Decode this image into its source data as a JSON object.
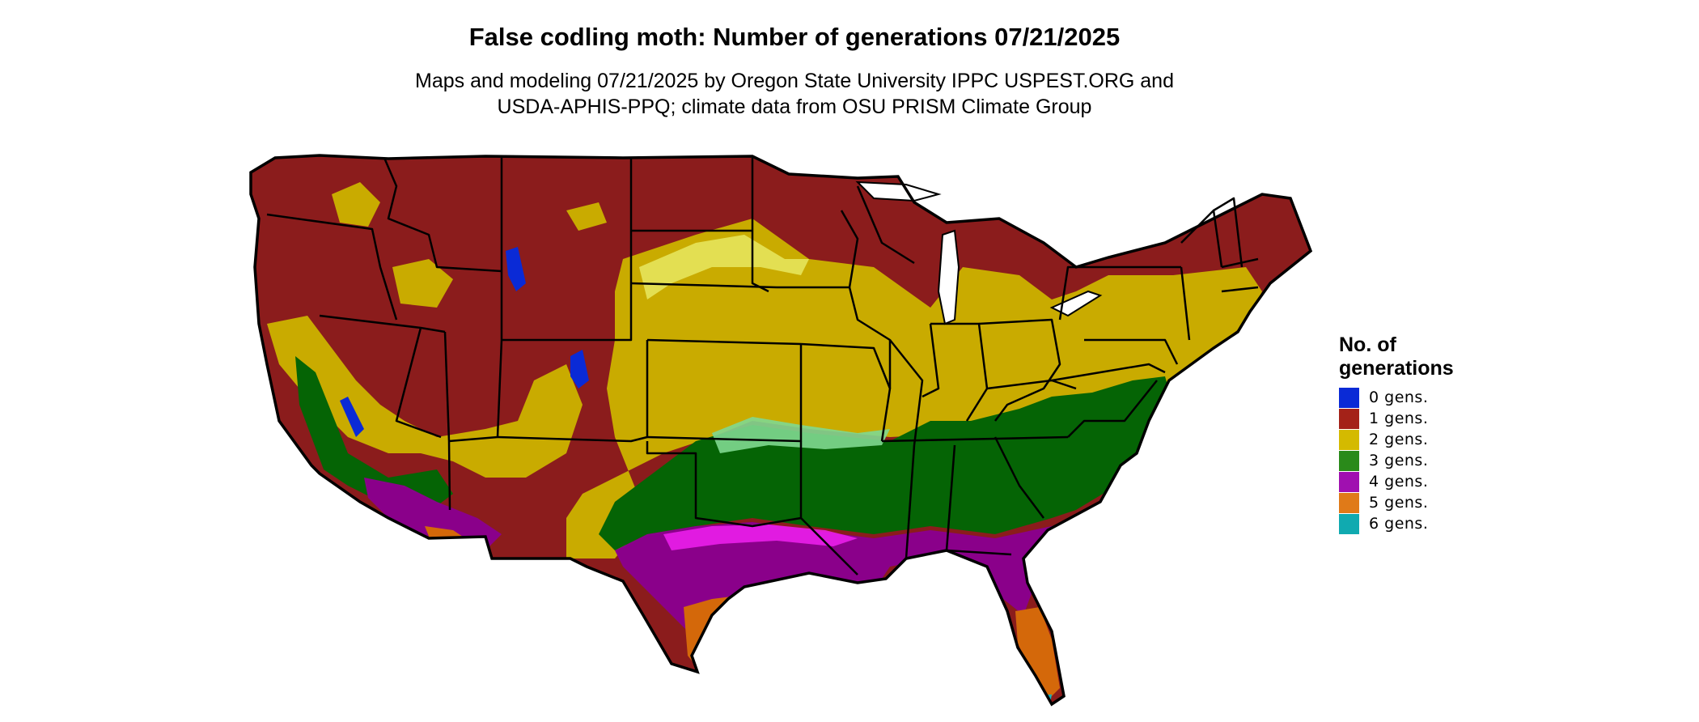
{
  "title": "False codling moth: Number of generations 07/21/2025",
  "subtitle_line1": "Maps and modeling 07/21/2025 by Oregon State University IPPC USPEST.ORG and",
  "subtitle_line2": "USDA-APHIS-PPQ; climate data from OSU PRISM Climate Group",
  "legend": {
    "title_line1": "No. of",
    "title_line2": "generations",
    "items": [
      {
        "label": "0 gens.",
        "color": "#0a2ad6"
      },
      {
        "label": "1 gens.",
        "color": "#a42218"
      },
      {
        "label": "2 gens.",
        "color": "#d4ba00"
      },
      {
        "label": "3 gens.",
        "color": "#2a8a1a"
      },
      {
        "label": "4 gens.",
        "color": "#a010b0"
      },
      {
        "label": "5 gens.",
        "color": "#e07a18"
      },
      {
        "label": "6 gens.",
        "color": "#10aab0"
      }
    ]
  },
  "map_colors": {
    "gen1_fill": "#8b1c1c",
    "gen2_fill": "#c9ab00",
    "gen2_light": "#e8e860",
    "gen3_fill": "#056405",
    "gen3_light": "#80d890",
    "gen4_fill": "#8a008a",
    "gen4_light": "#f020f0",
    "gen5_fill": "#d4680a",
    "gen6_fill": "#12b0b8",
    "gen0_fill": "#0a2ad6",
    "border": "#000000"
  }
}
